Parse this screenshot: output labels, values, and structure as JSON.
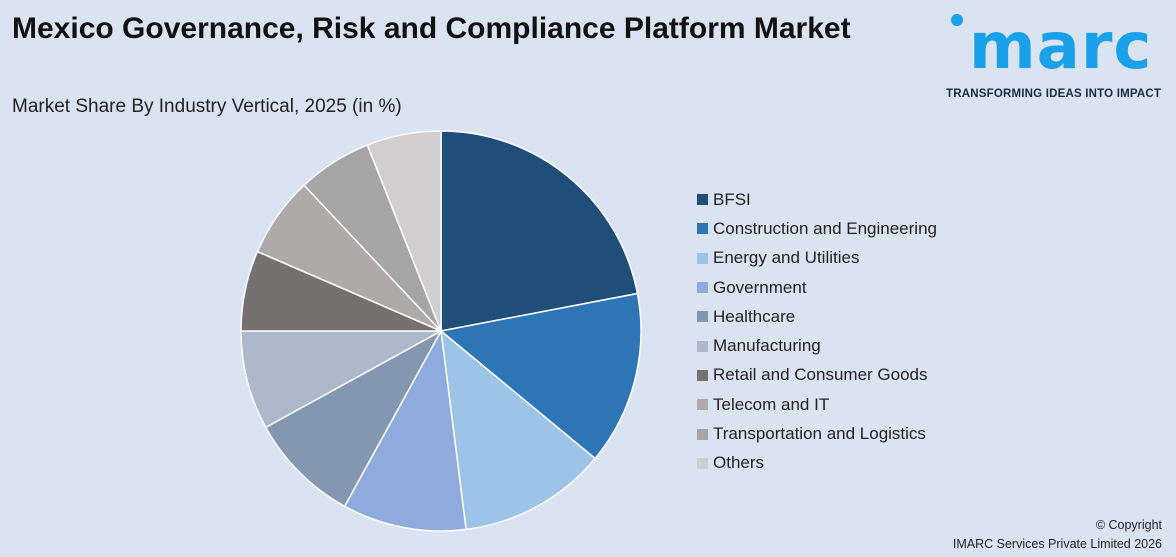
{
  "title": "Mexico Governance, Risk and Compliance Platform Market",
  "subtitle": "Market Share By Industry Vertical, 2025 (in %)",
  "logo": {
    "text": "imarc",
    "tagline": "TRANSFORMING IDEAS INTO IMPACT"
  },
  "copyright": {
    "line1": "© Copyright",
    "line2": "IMARC Services Private Limited 2026"
  },
  "chart_data": {
    "type": "pie",
    "title": "Mexico Governance, Risk and Compliance Platform Market",
    "subtitle": "Market Share By Industry Vertical, 2025 (in %)",
    "legend_position": "right",
    "categories": [
      "BFSI",
      "Construction and Engineering",
      "Energy and Utilities",
      "Government",
      "Healthcare",
      "Manufacturing",
      "Retail and Consumer Goods",
      "Telecom and IT",
      "Transportation and Logistics",
      "Others"
    ],
    "values": [
      22,
      14,
      12,
      10,
      9,
      8,
      6.5,
      6.5,
      6,
      6
    ],
    "colors": [
      "#1f4e79",
      "#2e75b6",
      "#9dc3e6",
      "#8faadc",
      "#8497b0",
      "#adb9ca",
      "#767171",
      "#aeaaaa",
      "#a5a5a5",
      "#d0cece"
    ]
  }
}
